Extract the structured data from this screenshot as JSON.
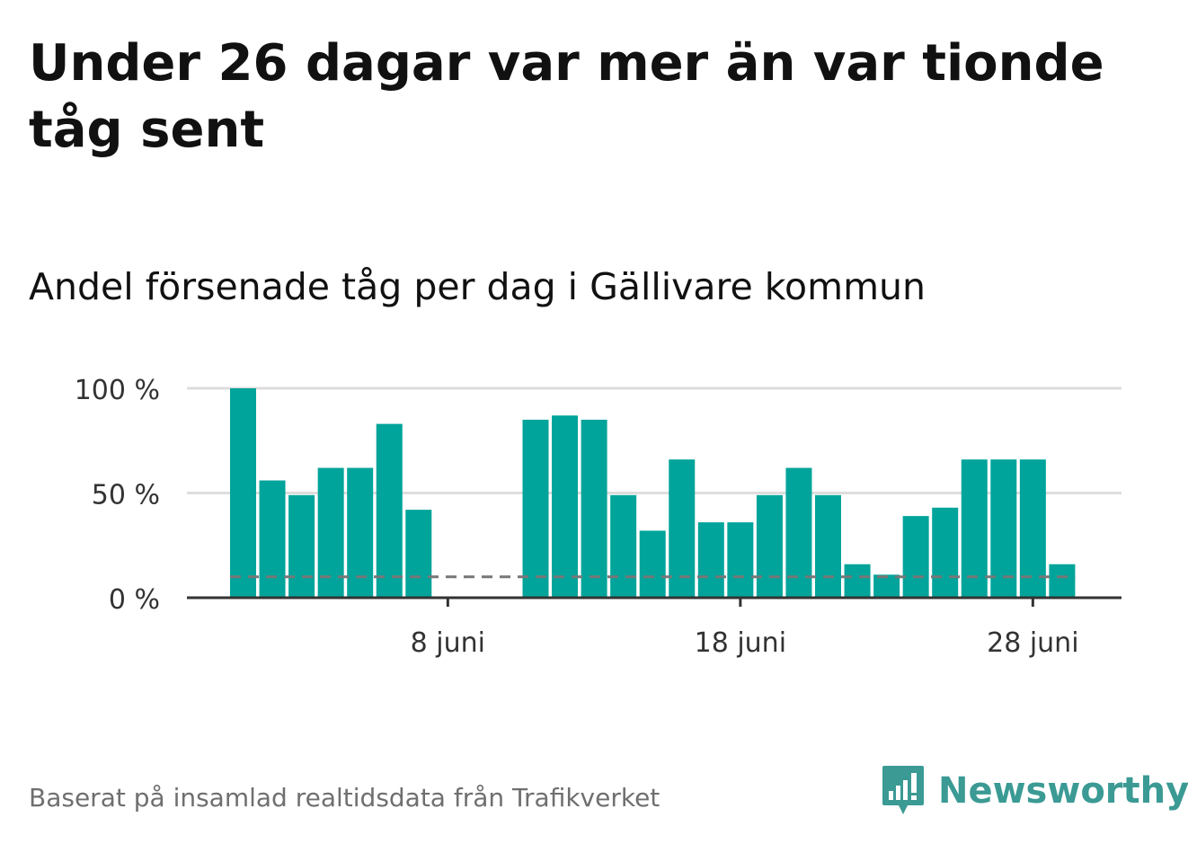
{
  "title": "Under 26 dagar var mer än var tionde tåg sent",
  "subtitle": "Andel försenade tåg per dag i Gällivare kommun",
  "footer": "Baserat på insamlad realtidsdata från Trafikverket",
  "brand": {
    "name": "Newsworthy",
    "logo_icon": "bar-chart-speech-bubble-icon"
  },
  "colors": {
    "bar": "#00a49a",
    "reference_line": "#777777",
    "grid": "#dddddd",
    "axis": "#333333",
    "brand": "#3b9a94"
  },
  "chart_data": {
    "type": "bar",
    "x_unit": "day of June",
    "days": [
      1,
      2,
      3,
      4,
      5,
      6,
      7,
      8,
      9,
      10,
      11,
      12,
      13,
      14,
      15,
      16,
      17,
      18,
      19,
      20,
      21,
      22,
      23,
      24,
      25,
      26,
      27,
      28,
      29
    ],
    "values": [
      100,
      56,
      49,
      62,
      62,
      83,
      42,
      null,
      null,
      null,
      85,
      87,
      85,
      49,
      32,
      66,
      36,
      36,
      49,
      62,
      49,
      16,
      11,
      39,
      43,
      66,
      66,
      66,
      16
    ],
    "reference_line": 10,
    "ylim": [
      0,
      100
    ],
    "yticks": [
      0,
      50,
      100
    ],
    "ytick_labels": [
      "0 %",
      "50 %",
      "100 %"
    ],
    "xticks": [
      8,
      18,
      28
    ],
    "xtick_labels": [
      "8 juni",
      "18 juni",
      "28 juni"
    ],
    "grid": true,
    "legend": "none"
  }
}
